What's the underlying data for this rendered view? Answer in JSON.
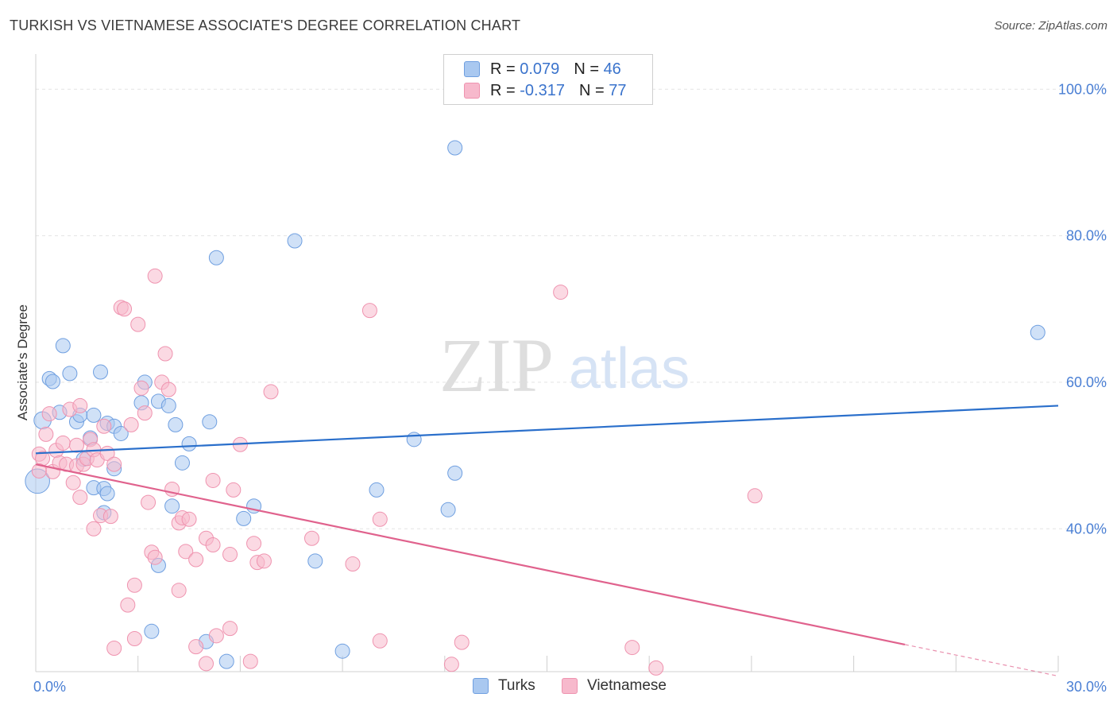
{
  "header": {
    "title": "TURKISH VS VIETNAMESE ASSOCIATE'S DEGREE CORRELATION CHART",
    "source": "Source: ZipAtlas.com"
  },
  "watermark": {
    "zip": "ZIP",
    "atlas": "atlas"
  },
  "legend": {
    "rows": [
      {
        "r_label": "R =",
        "r_value": "0.079",
        "n_label": "N =",
        "n_value": "46",
        "color": "#a9c8f0"
      },
      {
        "r_label": "R =",
        "r_value": "-0.317",
        "n_label": "N =",
        "n_value": "77",
        "color": "#f7b9cc"
      }
    ]
  },
  "bottom_legend": {
    "items": [
      {
        "label": "Turks",
        "color": "#a9c8f0"
      },
      {
        "label": "Vietnamese",
        "color": "#f7b9cc"
      }
    ]
  },
  "chart_data": {
    "type": "scatter",
    "title": "TURKISH VS VIETNAMESE ASSOCIATE'S DEGREE CORRELATION CHART",
    "ylabel": "Associate's Degree",
    "xlabel": "",
    "xlim": [
      0,
      30
    ],
    "ylim": [
      20.5,
      103.5
    ],
    "x_tick_labels": [
      {
        "value": 0,
        "label": "0.0%"
      },
      {
        "value": 30,
        "label": "30.0%"
      }
    ],
    "y_tick_labels": [
      {
        "value": 40,
        "label": "40.0%"
      },
      {
        "value": 60,
        "label": "60.0%"
      },
      {
        "value": 80,
        "label": "80.0%"
      },
      {
        "value": 100,
        "label": "100.0%"
      }
    ],
    "grid": "horizontal dashed",
    "legend_position": "top-center",
    "series": [
      {
        "name": "Turks",
        "color": "#a9c8f0",
        "stroke": "#6f9fe0",
        "line_color": "#2a6fcb",
        "trend": {
          "x": [
            0,
            30
          ],
          "y": [
            50.3,
            56.8
          ]
        },
        "points": [
          [
            0.05,
            46.5,
            1.7
          ],
          [
            0.2,
            54.8,
            1.2
          ],
          [
            0.4,
            60.5,
            1.0
          ],
          [
            0.5,
            60.1,
            1.0
          ],
          [
            0.7,
            55.9,
            1.0
          ],
          [
            0.8,
            65.0,
            1.0
          ],
          [
            1.0,
            61.2,
            1.0
          ],
          [
            1.2,
            54.6,
            1.0
          ],
          [
            1.3,
            55.5,
            1.0
          ],
          [
            1.4,
            49.5,
            1.0
          ],
          [
            1.6,
            52.4,
            1.0
          ],
          [
            1.7,
            55.5,
            1.0
          ],
          [
            1.9,
            61.4,
            1.0
          ],
          [
            2.1,
            54.4,
            1.0
          ],
          [
            2.3,
            54.0,
            1.0
          ],
          [
            2.5,
            53.0,
            1.0
          ],
          [
            1.7,
            45.6,
            1.0
          ],
          [
            2.0,
            45.5,
            1.0
          ],
          [
            2.1,
            44.8,
            1.0
          ],
          [
            2.0,
            42.2,
            1.0
          ],
          [
            2.3,
            48.2,
            1.0
          ],
          [
            3.1,
            57.2,
            1.0
          ],
          [
            3.2,
            60.0,
            1.0
          ],
          [
            3.6,
            57.4,
            1.0
          ],
          [
            3.9,
            56.8,
            1.0
          ],
          [
            4.1,
            54.2,
            1.0
          ],
          [
            4.3,
            49.0,
            1.0
          ],
          [
            4.5,
            51.6,
            1.0
          ],
          [
            4.0,
            43.1,
            1.0
          ],
          [
            3.6,
            35.0,
            1.0
          ],
          [
            5.1,
            54.6,
            1.0
          ],
          [
            5.3,
            77.0,
            1.0
          ],
          [
            3.4,
            26.0,
            1.0
          ],
          [
            5.0,
            24.6,
            1.0
          ],
          [
            5.6,
            21.9,
            1.0
          ],
          [
            6.1,
            41.4,
            1.0
          ],
          [
            6.4,
            43.1,
            1.0
          ],
          [
            7.6,
            79.3,
            1.0
          ],
          [
            8.2,
            35.6,
            1.0
          ],
          [
            9.0,
            23.3,
            1.0
          ],
          [
            10.0,
            45.3,
            1.0
          ],
          [
            11.1,
            52.2,
            1.0
          ],
          [
            12.1,
            42.6,
            1.0
          ],
          [
            12.3,
            47.6,
            1.0
          ],
          [
            12.3,
            92.0,
            1.0
          ],
          [
            29.4,
            66.8,
            1.0
          ]
        ]
      },
      {
        "name": "Vietnamese",
        "color": "#f7b9cc",
        "stroke": "#ef93af",
        "line_color": "#e0628d",
        "trend": {
          "x": [
            0,
            25.5
          ],
          "y": [
            48.8,
            24.2
          ]
        },
        "trend_dashed": {
          "x": [
            25.5,
            30
          ],
          "y": [
            24.2,
            19.9
          ]
        },
        "points": [
          [
            0.1,
            50.2,
            1.0
          ],
          [
            0.2,
            49.6,
            1.0
          ],
          [
            0.3,
            52.9,
            1.0
          ],
          [
            0.4,
            55.7,
            1.0
          ],
          [
            0.5,
            47.8,
            1.0
          ],
          [
            0.6,
            50.7,
            1.0
          ],
          [
            0.7,
            49.0,
            1.0
          ],
          [
            0.8,
            51.7,
            1.0
          ],
          [
            0.9,
            48.8,
            1.0
          ],
          [
            1.0,
            56.3,
            1.0
          ],
          [
            1.1,
            46.3,
            1.0
          ],
          [
            1.2,
            51.4,
            1.0
          ],
          [
            1.2,
            48.6,
            1.0
          ],
          [
            1.3,
            56.8,
            1.0
          ],
          [
            1.3,
            44.3,
            1.0
          ],
          [
            1.4,
            48.8,
            1.0
          ],
          [
            1.5,
            49.6,
            1.0
          ],
          [
            1.6,
            52.2,
            1.0
          ],
          [
            1.7,
            50.8,
            1.0
          ],
          [
            1.7,
            40.0,
            1.0
          ],
          [
            1.8,
            49.4,
            1.0
          ],
          [
            1.9,
            41.8,
            1.0
          ],
          [
            2.0,
            54.0,
            1.0
          ],
          [
            2.1,
            50.3,
            1.0
          ],
          [
            2.2,
            41.7,
            1.0
          ],
          [
            2.3,
            48.8,
            1.0
          ],
          [
            2.5,
            70.2,
            1.0
          ],
          [
            2.6,
            70.0,
            1.0
          ],
          [
            2.7,
            29.6,
            1.0
          ],
          [
            2.8,
            54.2,
            1.0
          ],
          [
            3.0,
            67.9,
            1.0
          ],
          [
            3.1,
            59.2,
            1.0
          ],
          [
            3.2,
            55.8,
            1.0
          ],
          [
            3.3,
            43.6,
            1.0
          ],
          [
            3.4,
            36.8,
            1.0
          ],
          [
            3.5,
            36.1,
            1.0
          ],
          [
            3.5,
            74.5,
            1.0
          ],
          [
            3.7,
            60.0,
            1.0
          ],
          [
            3.8,
            63.9,
            1.0
          ],
          [
            3.9,
            59.0,
            1.0
          ],
          [
            4.0,
            45.4,
            1.0
          ],
          [
            4.2,
            40.8,
            1.0
          ],
          [
            4.3,
            41.5,
            1.0
          ],
          [
            4.4,
            36.9,
            1.0
          ],
          [
            4.5,
            41.3,
            1.0
          ],
          [
            4.7,
            35.8,
            1.0
          ],
          [
            4.2,
            31.6,
            1.0
          ],
          [
            2.9,
            32.3,
            1.0
          ],
          [
            2.9,
            25.0,
            1.0
          ],
          [
            2.3,
            23.7,
            1.0
          ],
          [
            4.7,
            23.9,
            1.0
          ],
          [
            5.0,
            21.6,
            1.0
          ],
          [
            5.0,
            38.7,
            1.0
          ],
          [
            5.2,
            37.8,
            1.0
          ],
          [
            5.2,
            46.6,
            1.0
          ],
          [
            5.3,
            25.4,
            1.0
          ],
          [
            5.7,
            36.5,
            1.0
          ],
          [
            5.7,
            26.4,
            1.0
          ],
          [
            5.8,
            45.3,
            1.0
          ],
          [
            6.0,
            51.5,
            1.0
          ],
          [
            6.3,
            21.9,
            1.0
          ],
          [
            6.4,
            38.0,
            1.0
          ],
          [
            6.5,
            35.4,
            1.0
          ],
          [
            6.7,
            35.6,
            1.0
          ],
          [
            6.9,
            58.7,
            1.0
          ],
          [
            8.1,
            38.7,
            1.0
          ],
          [
            9.3,
            35.2,
            1.0
          ],
          [
            9.8,
            69.8,
            1.0
          ],
          [
            10.1,
            24.7,
            1.0
          ],
          [
            10.1,
            41.3,
            1.0
          ],
          [
            12.2,
            21.5,
            1.0
          ],
          [
            12.5,
            24.5,
            1.0
          ],
          [
            15.4,
            72.3,
            1.0
          ],
          [
            17.5,
            23.8,
            1.0
          ],
          [
            18.2,
            21.0,
            1.0
          ],
          [
            21.1,
            44.5,
            1.0
          ],
          [
            0.1,
            47.9,
            1.0
          ]
        ]
      }
    ]
  }
}
